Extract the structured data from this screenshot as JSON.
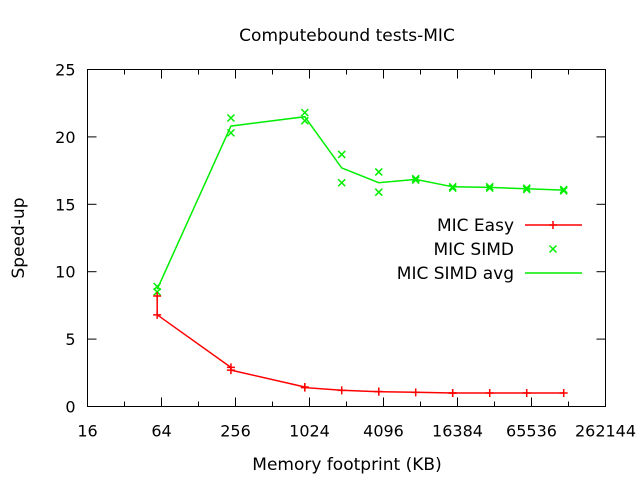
{
  "chart_data": {
    "type": "line",
    "title": "Computebound tests-MIC",
    "xlabel": "Memory footprint (KB)",
    "ylabel": "Speed-up",
    "x_scale": "log2",
    "xlim": [
      16,
      262144
    ],
    "ylim": [
      0,
      25
    ],
    "x_ticks": [
      16,
      64,
      256,
      1024,
      4096,
      16384,
      65536,
      262144
    ],
    "x_tick_labels": [
      "16",
      "64",
      "256",
      "1024",
      "4096",
      "16384",
      "65536",
      "262144"
    ],
    "y_ticks": [
      0,
      5,
      10,
      15,
      20,
      25
    ],
    "y_tick_labels": [
      "0",
      "5",
      "10",
      "15",
      "20",
      "25"
    ],
    "grid": false,
    "legend_position": "right",
    "series": [
      {
        "name": "MIC Easy",
        "style": "line+plus",
        "color": "#ff0000",
        "x": [
          59,
          59,
          235,
          235,
          938,
          938,
          1873,
          3750,
          3750,
          7487,
          14975,
          14975,
          29950,
          59900,
          119800
        ],
        "y": [
          8.2,
          6.8,
          2.9,
          2.7,
          1.45,
          1.4,
          1.2,
          1.1,
          1.1,
          1.05,
          1.0,
          1.0,
          1.0,
          1.0,
          1.0
        ]
      },
      {
        "name": "MIC SIMD",
        "style": "cross",
        "color": "#00ee00",
        "x": [
          59,
          59,
          235,
          235,
          938,
          938,
          1873,
          1873,
          3750,
          3750,
          7487,
          7487,
          14975,
          14975,
          29950,
          29950,
          59900,
          59900,
          119800,
          119800
        ],
        "y": [
          8.9,
          8.5,
          21.4,
          20.3,
          21.8,
          21.2,
          18.7,
          16.6,
          17.4,
          15.9,
          16.9,
          16.8,
          16.3,
          16.2,
          16.3,
          16.2,
          16.2,
          16.1,
          16.1,
          16.0
        ]
      },
      {
        "name": "MIC SIMD avg",
        "style": "line",
        "color": "#00ee00",
        "x": [
          59,
          235,
          938,
          1873,
          3750,
          7487,
          14975,
          29950,
          59900,
          119800
        ],
        "y": [
          8.7,
          20.8,
          21.5,
          17.7,
          16.6,
          16.85,
          16.3,
          16.25,
          16.15,
          16.05
        ]
      }
    ]
  }
}
